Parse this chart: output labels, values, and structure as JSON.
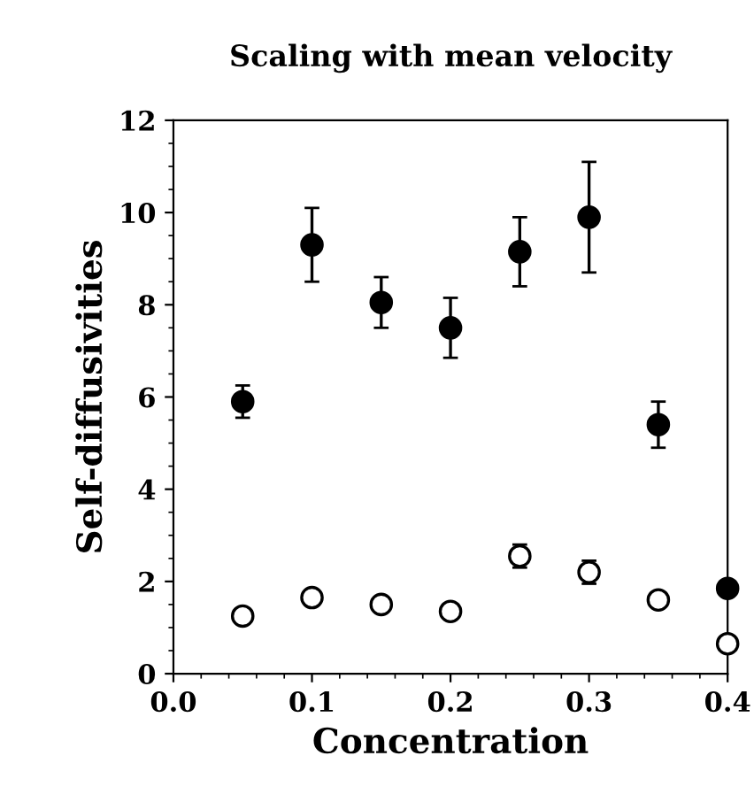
{
  "chart_data": {
    "type": "scatter",
    "title": "Scaling with mean velocity",
    "xlabel": "Concentration",
    "ylabel": "Self-diffusivities",
    "x": [
      0.05,
      0.1,
      0.15,
      0.2,
      0.25,
      0.3,
      0.35,
      0.4
    ],
    "series": [
      {
        "color": "#000000",
        "values": [
          5.9,
          9.3,
          8.05,
          7.5,
          9.15,
          9.9,
          5.4,
          1.85
        ],
        "errors": [
          0.35,
          0.8,
          0.55,
          0.65,
          0.75,
          1.2,
          0.5,
          null
        ]
      },
      {
        "color": "#ffffff",
        "values": [
          1.25,
          1.65,
          1.5,
          1.35,
          2.55,
          2.2,
          1.6,
          0.65
        ],
        "errors": [
          null,
          0.15,
          null,
          null,
          0.25,
          0.25,
          null,
          null
        ]
      }
    ],
    "marker": "circle",
    "grid": false,
    "legend": false,
    "xlim": [
      0,
      0.4
    ],
    "xticks": [
      {
        "value": 0,
        "label": "0.0"
      },
      0.1,
      0.2,
      0.3,
      0.4
    ],
    "ylim": [
      0,
      12
    ],
    "yticks": [
      0,
      2,
      4,
      6,
      8,
      10,
      12
    ]
  }
}
